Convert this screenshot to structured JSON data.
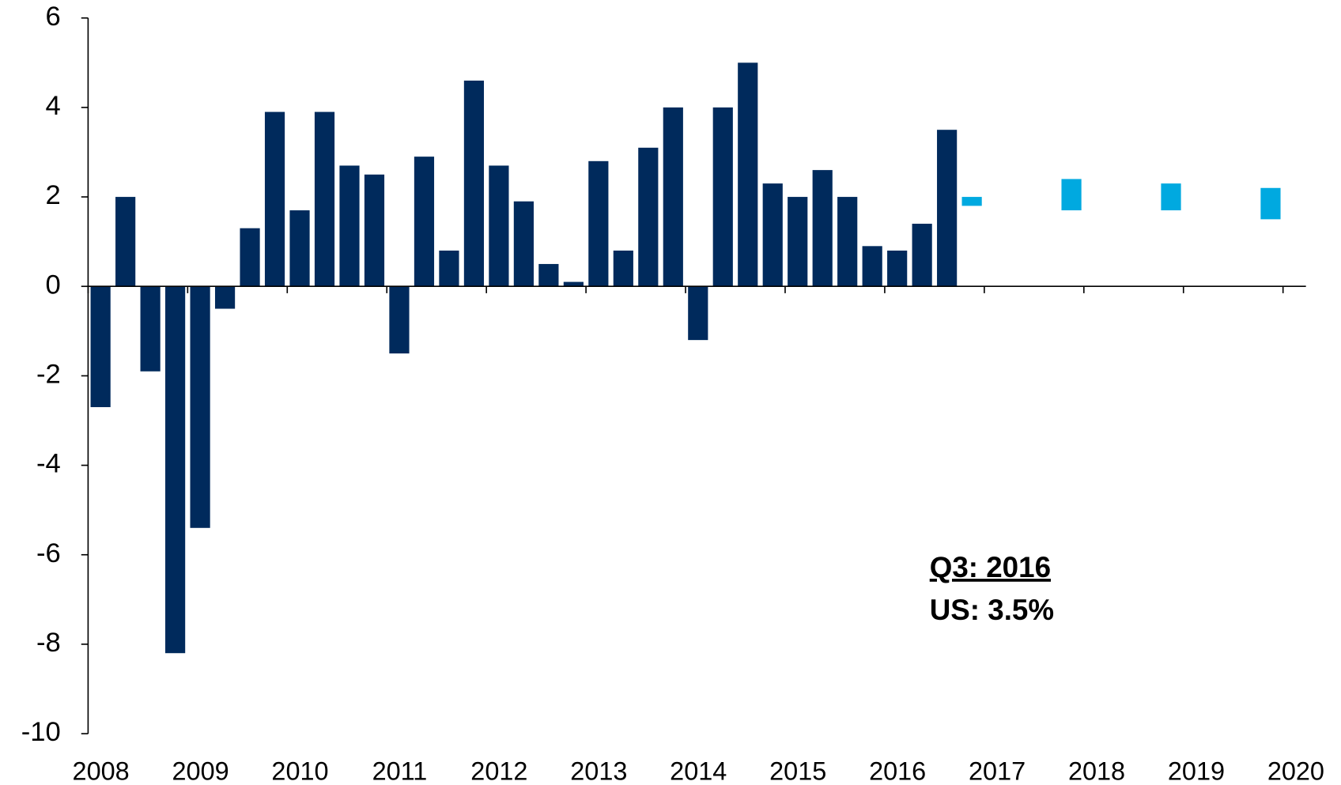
{
  "chart_data": {
    "type": "bar",
    "x": [
      2008.125,
      2008.375,
      2008.625,
      2008.875,
      2009.125,
      2009.375,
      2009.625,
      2009.875,
      2010.125,
      2010.375,
      2010.625,
      2010.875,
      2011.125,
      2011.375,
      2011.625,
      2011.875,
      2012.125,
      2012.375,
      2012.625,
      2012.875,
      2013.125,
      2013.375,
      2013.625,
      2013.875,
      2014.125,
      2014.375,
      2014.625,
      2014.875,
      2015.125,
      2015.375,
      2015.625,
      2015.875,
      2016.125,
      2016.375,
      2016.625
    ],
    "values": [
      -2.7,
      2.0,
      -1.9,
      -8.2,
      -5.4,
      -0.5,
      1.3,
      3.9,
      1.7,
      3.9,
      2.7,
      2.5,
      -1.5,
      2.9,
      0.8,
      4.6,
      2.7,
      1.9,
      0.5,
      0.1,
      2.8,
      0.8,
      3.1,
      4.0,
      -1.2,
      4.0,
      5.0,
      2.3,
      2.0,
      2.6,
      2.0,
      0.9,
      0.8,
      1.4,
      3.5
    ],
    "color": "#002a5c",
    "forecast": {
      "x": [
        2016.875,
        2017.875,
        2018.875,
        2019.875
      ],
      "low": [
        1.8,
        1.7,
        1.7,
        1.5
      ],
      "high": [
        2.0,
        2.4,
        2.3,
        2.2
      ],
      "color": "#00a9e0"
    },
    "xlim": [
      2008,
      2020.23
    ],
    "xticks": [
      2008,
      2009,
      2010,
      2011,
      2012,
      2013,
      2014,
      2015,
      2016,
      2017,
      2018,
      2019,
      2020
    ],
    "ylim": [
      -10,
      6
    ],
    "yticks": [
      -10,
      -8,
      -6,
      -4,
      -2,
      0,
      2,
      4,
      6
    ],
    "annotations": [
      "Q3: 2016",
      "US: 3.5%"
    ]
  }
}
